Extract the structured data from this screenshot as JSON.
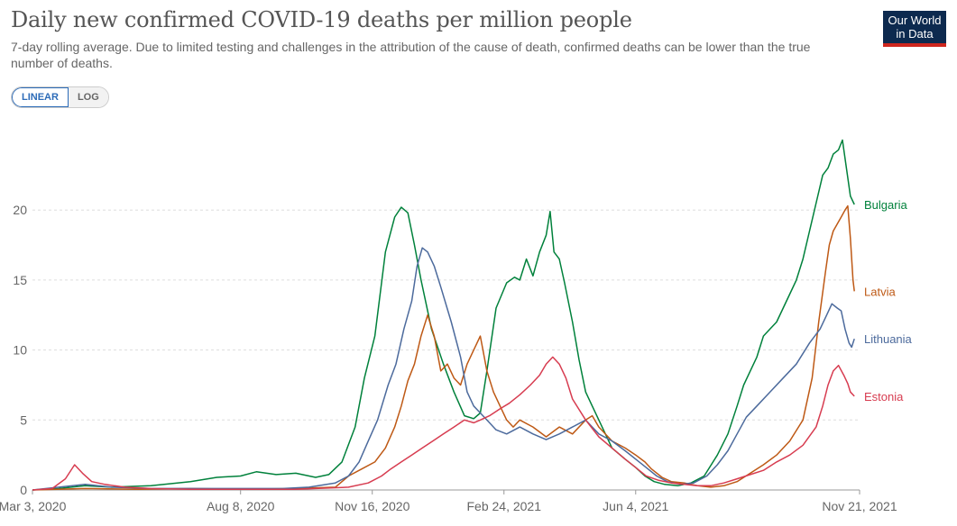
{
  "header": {
    "title": "Daily new confirmed COVID-19 deaths per million people",
    "subtitle": "7-day rolling average. Due to limited testing and challenges in the attribution of the cause of death, confirmed deaths can be lower than the true number of deaths."
  },
  "logo": {
    "line1": "Our World",
    "line2": "in Data"
  },
  "controls": {
    "linear_label": "LINEAR",
    "log_label": "LOG",
    "selected": "linear"
  },
  "colors": {
    "Bulgaria": "#00813b",
    "Latvia": "#be5915",
    "Lithuania": "#4c6a9c",
    "Estonia": "#d73c50",
    "grid": "#dddddd",
    "axis": "#666666"
  },
  "chart_data": {
    "type": "line",
    "title": "Daily new confirmed COVID-19 deaths per million people",
    "xlabel": "",
    "ylabel": "",
    "x_unit": "days since Mar 3, 2020",
    "xlim": [
      0,
      628
    ],
    "ylim": [
      0,
      26
    ],
    "y_ticks": [
      0,
      5,
      10,
      15,
      20
    ],
    "x_ticks": [
      {
        "day": 0,
        "label": "Mar 3, 2020"
      },
      {
        "day": 158,
        "label": "Aug 8, 2020"
      },
      {
        "day": 258,
        "label": "Nov 16, 2020"
      },
      {
        "day": 358,
        "label": "Feb 24, 2021"
      },
      {
        "day": 458,
        "label": "Jun 4, 2021"
      },
      {
        "day": 628,
        "label": "Nov 21, 2021"
      }
    ],
    "grid": "horizontal",
    "series": [
      {
        "name": "Bulgaria",
        "points": [
          [
            0,
            0
          ],
          [
            20,
            0.1
          ],
          [
            40,
            0.3
          ],
          [
            60,
            0.2
          ],
          [
            90,
            0.3
          ],
          [
            120,
            0.6
          ],
          [
            140,
            0.9
          ],
          [
            158,
            1.0
          ],
          [
            170,
            1.3
          ],
          [
            185,
            1.1
          ],
          [
            200,
            1.2
          ],
          [
            215,
            0.9
          ],
          [
            225,
            1.1
          ],
          [
            235,
            2.0
          ],
          [
            245,
            4.5
          ],
          [
            252,
            8.0
          ],
          [
            260,
            11.0
          ],
          [
            268,
            17.0
          ],
          [
            275,
            19.5
          ],
          [
            280,
            20.2
          ],
          [
            285,
            19.8
          ],
          [
            290,
            17.5
          ],
          [
            295,
            15.0
          ],
          [
            303,
            11.5
          ],
          [
            312,
            9.0
          ],
          [
            320,
            7.0
          ],
          [
            328,
            5.3
          ],
          [
            335,
            5.1
          ],
          [
            340,
            5.5
          ],
          [
            345,
            8.5
          ],
          [
            352,
            13.0
          ],
          [
            360,
            14.8
          ],
          [
            366,
            15.2
          ],
          [
            370,
            15.0
          ],
          [
            375,
            16.5
          ],
          [
            380,
            15.3
          ],
          [
            385,
            17.0
          ],
          [
            390,
            18.2
          ],
          [
            393,
            19.9
          ],
          [
            396,
            17.0
          ],
          [
            400,
            16.5
          ],
          [
            404,
            14.8
          ],
          [
            410,
            12.0
          ],
          [
            415,
            9.3
          ],
          [
            420,
            7.0
          ],
          [
            425,
            6.0
          ],
          [
            430,
            5.0
          ],
          [
            435,
            4.0
          ],
          [
            440,
            3.0
          ],
          [
            450,
            2.2
          ],
          [
            458,
            1.6
          ],
          [
            465,
            1.0
          ],
          [
            472,
            0.6
          ],
          [
            480,
            0.4
          ],
          [
            490,
            0.3
          ],
          [
            500,
            0.5
          ],
          [
            510,
            1.0
          ],
          [
            520,
            2.5
          ],
          [
            528,
            4.0
          ],
          [
            535,
            6.0
          ],
          [
            540,
            7.5
          ],
          [
            545,
            8.5
          ],
          [
            550,
            9.5
          ],
          [
            555,
            11.0
          ],
          [
            560,
            11.5
          ],
          [
            565,
            12.0
          ],
          [
            570,
            13.0
          ],
          [
            575,
            14.0
          ],
          [
            580,
            15.0
          ],
          [
            585,
            16.5
          ],
          [
            590,
            18.5
          ],
          [
            595,
            20.5
          ],
          [
            600,
            22.5
          ],
          [
            604,
            23.0
          ],
          [
            608,
            24.0
          ],
          [
            612,
            24.3
          ],
          [
            615,
            25.0
          ],
          [
            618,
            23.0
          ],
          [
            621,
            21.0
          ],
          [
            624,
            20.4
          ]
        ]
      },
      {
        "name": "Latvia",
        "points": [
          [
            0,
            0
          ],
          [
            40,
            0.1
          ],
          [
            80,
            0.05
          ],
          [
            120,
            0.1
          ],
          [
            158,
            0.05
          ],
          [
            200,
            0.1
          ],
          [
            230,
            0.2
          ],
          [
            240,
            1.0
          ],
          [
            250,
            1.5
          ],
          [
            260,
            2.0
          ],
          [
            268,
            3.0
          ],
          [
            275,
            4.5
          ],
          [
            280,
            6.0
          ],
          [
            285,
            7.8
          ],
          [
            290,
            9.0
          ],
          [
            295,
            11.0
          ],
          [
            300,
            12.5
          ],
          [
            305,
            11.0
          ],
          [
            310,
            8.5
          ],
          [
            315,
            9.0
          ],
          [
            320,
            8.0
          ],
          [
            325,
            7.5
          ],
          [
            330,
            9.0
          ],
          [
            335,
            10.0
          ],
          [
            340,
            11.0
          ],
          [
            345,
            8.5
          ],
          [
            350,
            7.0
          ],
          [
            355,
            6.0
          ],
          [
            360,
            5.0
          ],
          [
            365,
            4.5
          ],
          [
            370,
            5.0
          ],
          [
            380,
            4.5
          ],
          [
            390,
            3.8
          ],
          [
            400,
            4.5
          ],
          [
            410,
            4.0
          ],
          [
            420,
            5.0
          ],
          [
            425,
            5.3
          ],
          [
            430,
            4.5
          ],
          [
            440,
            3.5
          ],
          [
            450,
            3.0
          ],
          [
            458,
            2.5
          ],
          [
            465,
            2.0
          ],
          [
            470,
            1.5
          ],
          [
            478,
            0.9
          ],
          [
            485,
            0.6
          ],
          [
            495,
            0.5
          ],
          [
            505,
            0.3
          ],
          [
            515,
            0.2
          ],
          [
            525,
            0.3
          ],
          [
            535,
            0.6
          ],
          [
            545,
            1.2
          ],
          [
            555,
            1.8
          ],
          [
            565,
            2.5
          ],
          [
            575,
            3.5
          ],
          [
            585,
            5.0
          ],
          [
            592,
            8.0
          ],
          [
            597,
            12.0
          ],
          [
            602,
            15.5
          ],
          [
            605,
            17.5
          ],
          [
            608,
            18.5
          ],
          [
            611,
            19.0
          ],
          [
            614,
            19.5
          ],
          [
            617,
            20.0
          ],
          [
            619,
            20.3
          ],
          [
            621,
            18.0
          ],
          [
            623,
            15.0
          ],
          [
            624,
            14.2
          ]
        ]
      },
      {
        "name": "Lithuania",
        "points": [
          [
            0,
            0
          ],
          [
            20,
            0.2
          ],
          [
            40,
            0.4
          ],
          [
            60,
            0.2
          ],
          [
            90,
            0.1
          ],
          [
            120,
            0.1
          ],
          [
            158,
            0.1
          ],
          [
            190,
            0.1
          ],
          [
            210,
            0.2
          ],
          [
            230,
            0.5
          ],
          [
            240,
            1.0
          ],
          [
            248,
            2.0
          ],
          [
            255,
            3.5
          ],
          [
            262,
            5.0
          ],
          [
            270,
            7.5
          ],
          [
            276,
            9.0
          ],
          [
            282,
            11.5
          ],
          [
            288,
            13.5
          ],
          [
            292,
            16.0
          ],
          [
            296,
            17.3
          ],
          [
            300,
            17.0
          ],
          [
            305,
            16.0
          ],
          [
            310,
            14.5
          ],
          [
            318,
            12.0
          ],
          [
            325,
            9.5
          ],
          [
            330,
            7.0
          ],
          [
            335,
            6.0
          ],
          [
            340,
            5.5
          ],
          [
            345,
            5.0
          ],
          [
            352,
            4.3
          ],
          [
            360,
            4.0
          ],
          [
            370,
            4.5
          ],
          [
            380,
            4.0
          ],
          [
            390,
            3.6
          ],
          [
            400,
            4.0
          ],
          [
            410,
            4.5
          ],
          [
            420,
            5.0
          ],
          [
            425,
            4.5
          ],
          [
            430,
            4.0
          ],
          [
            440,
            3.5
          ],
          [
            450,
            2.8
          ],
          [
            458,
            2.2
          ],
          [
            466,
            1.6
          ],
          [
            474,
            1.0
          ],
          [
            482,
            0.6
          ],
          [
            492,
            0.4
          ],
          [
            502,
            0.5
          ],
          [
            512,
            1.0
          ],
          [
            520,
            1.8
          ],
          [
            528,
            2.8
          ],
          [
            535,
            4.0
          ],
          [
            542,
            5.2
          ],
          [
            550,
            6.0
          ],
          [
            560,
            7.0
          ],
          [
            570,
            8.0
          ],
          [
            580,
            9.0
          ],
          [
            590,
            10.5
          ],
          [
            598,
            11.5
          ],
          [
            603,
            12.5
          ],
          [
            607,
            13.3
          ],
          [
            611,
            13.0
          ],
          [
            614,
            12.8
          ],
          [
            617,
            11.5
          ],
          [
            620,
            10.5
          ],
          [
            622,
            10.2
          ],
          [
            624,
            10.8
          ]
        ]
      },
      {
        "name": "Estonia",
        "points": [
          [
            0,
            0
          ],
          [
            15,
            0.1
          ],
          [
            25,
            0.8
          ],
          [
            32,
            1.8
          ],
          [
            38,
            1.2
          ],
          [
            45,
            0.6
          ],
          [
            55,
            0.4
          ],
          [
            70,
            0.2
          ],
          [
            90,
            0.1
          ],
          [
            120,
            0.05
          ],
          [
            158,
            0.05
          ],
          [
            200,
            0.05
          ],
          [
            240,
            0.2
          ],
          [
            255,
            0.5
          ],
          [
            265,
            1.0
          ],
          [
            272,
            1.5
          ],
          [
            280,
            2.0
          ],
          [
            288,
            2.5
          ],
          [
            296,
            3.0
          ],
          [
            304,
            3.5
          ],
          [
            312,
            4.0
          ],
          [
            320,
            4.5
          ],
          [
            328,
            5.0
          ],
          [
            335,
            4.8
          ],
          [
            340,
            5.0
          ],
          [
            347,
            5.3
          ],
          [
            355,
            5.8
          ],
          [
            362,
            6.2
          ],
          [
            370,
            6.8
          ],
          [
            378,
            7.5
          ],
          [
            385,
            8.2
          ],
          [
            390,
            9.0
          ],
          [
            395,
            9.5
          ],
          [
            400,
            9.0
          ],
          [
            405,
            8.0
          ],
          [
            410,
            6.5
          ],
          [
            420,
            5.0
          ],
          [
            430,
            3.8
          ],
          [
            440,
            3.0
          ],
          [
            450,
            2.2
          ],
          [
            458,
            1.6
          ],
          [
            466,
            1.0
          ],
          [
            475,
            0.7
          ],
          [
            485,
            0.5
          ],
          [
            495,
            0.4
          ],
          [
            505,
            0.3
          ],
          [
            515,
            0.3
          ],
          [
            525,
            0.5
          ],
          [
            535,
            0.8
          ],
          [
            545,
            1.1
          ],
          [
            555,
            1.4
          ],
          [
            565,
            2.0
          ],
          [
            575,
            2.5
          ],
          [
            585,
            3.2
          ],
          [
            595,
            4.5
          ],
          [
            600,
            6.0
          ],
          [
            604,
            7.5
          ],
          [
            608,
            8.5
          ],
          [
            612,
            8.9
          ],
          [
            616,
            8.2
          ],
          [
            619,
            7.6
          ],
          [
            621,
            7.0
          ],
          [
            624,
            6.7
          ]
        ]
      }
    ]
  }
}
